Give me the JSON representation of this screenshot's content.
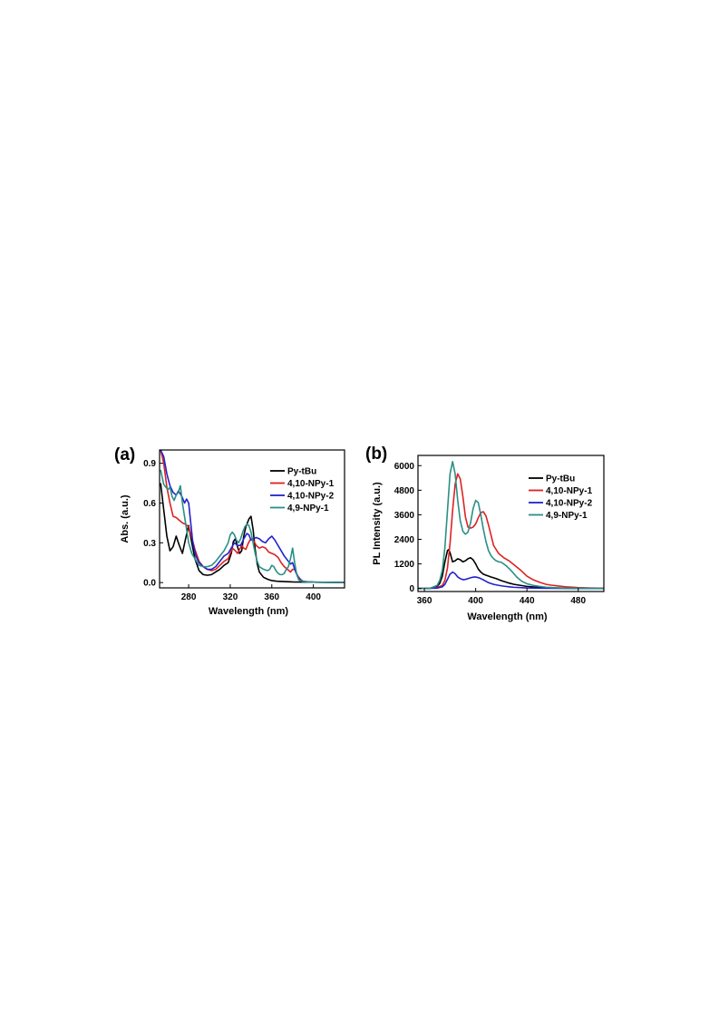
{
  "chart_data": [
    {
      "type": "line",
      "panel_label": "(a)",
      "xlabel": "Wavelength (nm)",
      "ylabel": "Abs. (a.u.)",
      "xlim": [
        252,
        430
      ],
      "ylim": [
        -0.04,
        1.0
      ],
      "xticks": [
        280,
        320,
        360,
        400
      ],
      "yticks": [
        0.0,
        0.3,
        0.6,
        0.9
      ],
      "ytick_labels": [
        "0.0",
        "0.3",
        "0.6",
        "0.9"
      ],
      "grid": false,
      "legend_position": "top-right",
      "series": [
        {
          "name": "Py-tBu",
          "color": "#000000",
          "x": [
            253,
            256,
            259,
            262,
            265,
            268,
            271,
            274,
            277,
            280,
            283,
            286,
            290,
            294,
            298,
            302,
            306,
            310,
            314,
            318,
            321,
            323,
            325,
            327,
            329,
            331,
            333,
            335,
            338,
            340,
            342,
            344,
            346,
            348,
            352,
            356,
            360,
            365,
            370,
            380,
            390,
            400,
            410,
            420,
            430
          ],
          "y": [
            0.75,
            0.55,
            0.35,
            0.24,
            0.27,
            0.35,
            0.28,
            0.22,
            0.33,
            0.43,
            0.3,
            0.18,
            0.09,
            0.06,
            0.055,
            0.06,
            0.08,
            0.1,
            0.13,
            0.15,
            0.22,
            0.31,
            0.33,
            0.27,
            0.22,
            0.24,
            0.35,
            0.42,
            0.48,
            0.5,
            0.4,
            0.25,
            0.14,
            0.08,
            0.04,
            0.025,
            0.015,
            0.01,
            0.008,
            0.005,
            0.004,
            0.003,
            0.002,
            0.002,
            0.002
          ]
        },
        {
          "name": "4,10-NPy-1",
          "color": "#dd2222",
          "x": [
            253,
            256,
            259,
            262,
            265,
            268,
            271,
            274,
            277,
            280,
            283,
            286,
            290,
            294,
            298,
            302,
            306,
            310,
            314,
            318,
            320,
            322,
            325,
            327,
            329,
            331,
            333,
            335,
            337,
            339,
            341,
            343,
            345,
            348,
            351,
            354,
            357,
            360,
            363,
            366,
            369,
            372,
            375,
            378,
            380,
            382,
            385,
            388,
            390,
            395,
            400,
            410,
            420,
            430
          ],
          "y": [
            1.0,
            0.9,
            0.72,
            0.6,
            0.5,
            0.49,
            0.47,
            0.45,
            0.44,
            0.42,
            0.34,
            0.25,
            0.16,
            0.12,
            0.1,
            0.09,
            0.1,
            0.13,
            0.16,
            0.18,
            0.22,
            0.26,
            0.24,
            0.22,
            0.25,
            0.28,
            0.26,
            0.25,
            0.29,
            0.32,
            0.33,
            0.31,
            0.28,
            0.26,
            0.27,
            0.26,
            0.23,
            0.22,
            0.21,
            0.19,
            0.15,
            0.12,
            0.1,
            0.08,
            0.1,
            0.1,
            0.05,
            0.02,
            0.01,
            0.005,
            0.003,
            0.002,
            0.001,
            0.001
          ]
        },
        {
          "name": "4,10-NPy-2",
          "color": "#2222cc",
          "x": [
            253,
            256,
            259,
            262,
            265,
            268,
            270,
            272,
            274,
            276,
            278,
            280,
            282,
            284,
            287,
            290,
            294,
            298,
            302,
            306,
            310,
            314,
            318,
            321,
            324,
            327,
            330,
            333,
            336,
            338,
            340,
            342,
            345,
            348,
            351,
            354,
            357,
            360,
            363,
            366,
            369,
            372,
            375,
            378,
            380,
            383,
            386,
            390,
            395,
            400,
            410,
            420,
            430
          ],
          "y": [
            1.0,
            0.95,
            0.82,
            0.73,
            0.68,
            0.66,
            0.69,
            0.67,
            0.64,
            0.6,
            0.63,
            0.6,
            0.45,
            0.3,
            0.2,
            0.15,
            0.12,
            0.1,
            0.1,
            0.12,
            0.16,
            0.2,
            0.22,
            0.26,
            0.3,
            0.28,
            0.28,
            0.33,
            0.37,
            0.36,
            0.32,
            0.33,
            0.34,
            0.33,
            0.31,
            0.3,
            0.33,
            0.35,
            0.32,
            0.28,
            0.24,
            0.2,
            0.17,
            0.14,
            0.15,
            0.08,
            0.03,
            0.01,
            0.005,
            0.003,
            0.002,
            0.001,
            0.001
          ]
        },
        {
          "name": "4,9-NPy-1",
          "color": "#2a8f86",
          "x": [
            253,
            256,
            258,
            260,
            262,
            264,
            266,
            268,
            270,
            272,
            274,
            277,
            280,
            283,
            286,
            290,
            294,
            298,
            302,
            306,
            310,
            314,
            318,
            320,
            322,
            324,
            326,
            328,
            330,
            332,
            334,
            336,
            338,
            340,
            342,
            344,
            346,
            348,
            352,
            356,
            358,
            360,
            362,
            364,
            366,
            368,
            370,
            372,
            374,
            376,
            378,
            380,
            382,
            384,
            386,
            390,
            395,
            400,
            410,
            420,
            430
          ],
          "y": [
            0.85,
            0.74,
            0.72,
            0.7,
            0.72,
            0.65,
            0.62,
            0.66,
            0.68,
            0.73,
            0.6,
            0.45,
            0.3,
            0.22,
            0.18,
            0.13,
            0.12,
            0.12,
            0.13,
            0.16,
            0.2,
            0.24,
            0.3,
            0.36,
            0.38,
            0.36,
            0.32,
            0.3,
            0.33,
            0.38,
            0.42,
            0.44,
            0.43,
            0.38,
            0.3,
            0.22,
            0.16,
            0.12,
            0.1,
            0.09,
            0.1,
            0.13,
            0.12,
            0.09,
            0.07,
            0.06,
            0.06,
            0.07,
            0.1,
            0.12,
            0.18,
            0.26,
            0.15,
            0.06,
            0.02,
            0.008,
            0.004,
            0.003,
            0.002,
            0.001,
            0.001
          ]
        }
      ]
    },
    {
      "type": "line",
      "panel_label": "(b)",
      "xlabel": "Wavelength (nm)",
      "ylabel": "PL Intensity (a.u.)",
      "xlim": [
        355,
        500
      ],
      "ylim": [
        -150,
        6500
      ],
      "xticks": [
        360,
        400,
        440,
        480
      ],
      "yticks": [
        0,
        1200,
        2400,
        3600,
        4800,
        6000
      ],
      "ytick_labels": [
        "0",
        "1200",
        "2400",
        "3600",
        "4800",
        "6000"
      ],
      "grid": false,
      "legend_position": "top-right",
      "series": [
        {
          "name": "Py-tBu",
          "color": "#000000",
          "x": [
            355,
            360,
            365,
            370,
            372,
            374,
            376,
            378,
            379,
            380,
            382,
            384,
            386,
            388,
            390,
            392,
            394,
            396,
            398,
            400,
            402,
            404,
            406,
            408,
            412,
            416,
            420,
            425,
            430,
            440,
            450,
            460,
            470,
            480,
            490,
            500
          ],
          "y": [
            0,
            0,
            20,
            100,
            250,
            600,
            1300,
            1850,
            1900,
            1750,
            1300,
            1350,
            1450,
            1400,
            1300,
            1350,
            1450,
            1500,
            1400,
            1200,
            950,
            800,
            700,
            650,
            560,
            480,
            380,
            280,
            200,
            100,
            50,
            25,
            12,
            8,
            5,
            3
          ]
        },
        {
          "name": "4,10-NPy-1",
          "color": "#dd2222",
          "x": [
            355,
            360,
            365,
            370,
            374,
            376,
            378,
            380,
            382,
            384,
            386,
            388,
            390,
            392,
            394,
            396,
            398,
            400,
            402,
            404,
            406,
            408,
            410,
            412,
            414,
            418,
            422,
            426,
            430,
            435,
            440,
            445,
            450,
            455,
            460,
            470,
            480,
            490,
            500
          ],
          "y": [
            0,
            0,
            10,
            40,
            150,
            400,
            1000,
            2200,
            3800,
            5100,
            5600,
            5350,
            4500,
            3500,
            3000,
            2950,
            3000,
            3150,
            3450,
            3700,
            3750,
            3550,
            3100,
            2600,
            2100,
            1700,
            1500,
            1350,
            1150,
            900,
            600,
            420,
            300,
            200,
            150,
            80,
            40,
            20,
            10
          ]
        },
        {
          "name": "4,10-NPy-2",
          "color": "#2222cc",
          "x": [
            355,
            360,
            365,
            370,
            374,
            376,
            378,
            380,
            382,
            384,
            386,
            388,
            390,
            392,
            394,
            396,
            398,
            400,
            402,
            404,
            406,
            408,
            410,
            414,
            418,
            422,
            426,
            430,
            440,
            450,
            460,
            470,
            480,
            490,
            500
          ],
          "y": [
            0,
            0,
            5,
            20,
            80,
            200,
            450,
            700,
            800,
            720,
            560,
            480,
            430,
            440,
            480,
            520,
            550,
            560,
            530,
            480,
            420,
            350,
            280,
            200,
            150,
            110,
            80,
            55,
            25,
            12,
            6,
            3,
            2,
            1,
            0
          ]
        },
        {
          "name": "4,9-NPy-1",
          "color": "#2a8f86",
          "x": [
            355,
            360,
            365,
            370,
            372,
            374,
            376,
            378,
            380,
            382,
            384,
            386,
            388,
            390,
            392,
            394,
            396,
            398,
            400,
            402,
            404,
            406,
            408,
            410,
            412,
            414,
            416,
            418,
            420,
            424,
            428,
            432,
            436,
            440,
            445,
            450,
            455,
            460,
            470,
            480,
            490,
            500
          ],
          "y": [
            0,
            0,
            20,
            150,
            400,
            900,
            2000,
            3800,
            5600,
            6200,
            5600,
            4300,
            3300,
            2800,
            2650,
            2750,
            3200,
            3900,
            4300,
            4200,
            3600,
            2900,
            2300,
            1850,
            1600,
            1450,
            1350,
            1300,
            1280,
            1100,
            850,
            560,
            350,
            230,
            150,
            100,
            60,
            40,
            15,
            8,
            3,
            0
          ]
        }
      ]
    }
  ]
}
